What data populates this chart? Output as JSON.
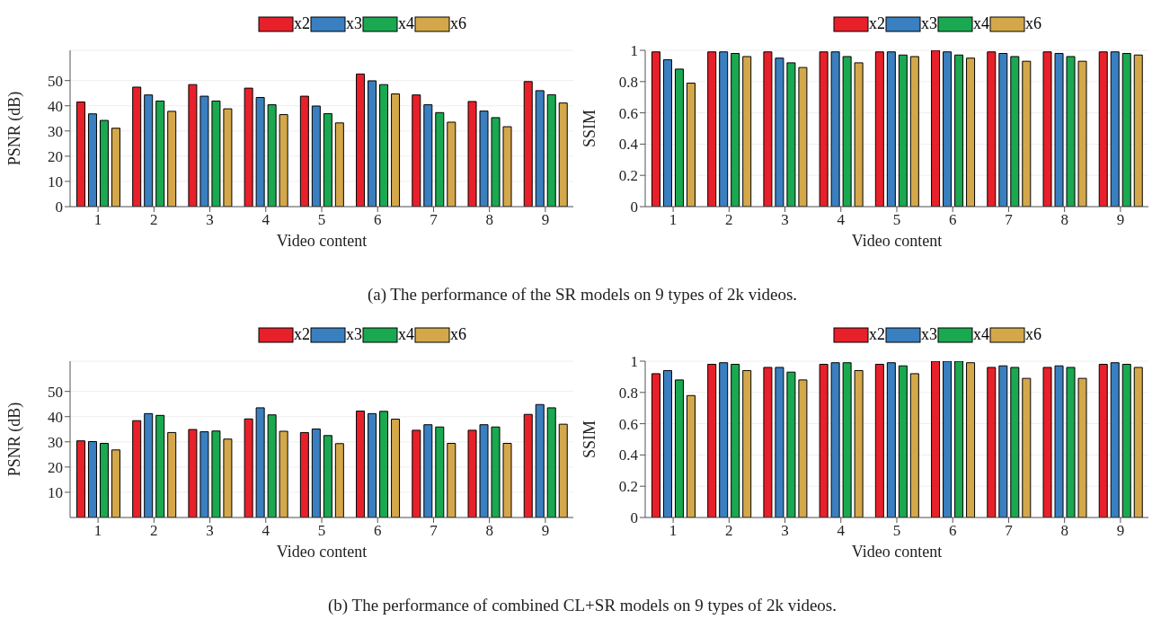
{
  "chart_data": [
    {
      "type": "bar",
      "xlabel": "Video content",
      "ylabel": "PSNR (dB)",
      "categories": [
        "1",
        "2",
        "3",
        "4",
        "5",
        "6",
        "7",
        "8",
        "9"
      ],
      "ylim": [
        0,
        62
      ],
      "yticks": [
        0,
        10,
        20,
        30,
        40,
        50
      ],
      "grid": "y",
      "legend": "top",
      "annotations": [
        "(a) The performance of the SR models on 9 types of 2k videos."
      ],
      "series": [
        {
          "name": "x2",
          "color": "#e8202a",
          "values": [
            41.5,
            47.4,
            48.4,
            47.0,
            43.8,
            52.6,
            44.3,
            41.7,
            49.6
          ]
        },
        {
          "name": "x3",
          "color": "#3a7fc0",
          "values": [
            36.8,
            44.3,
            43.8,
            43.3,
            39.9,
            49.9,
            40.4,
            37.9,
            46.0
          ]
        },
        {
          "name": "x4",
          "color": "#1aa850",
          "values": [
            34.2,
            41.9,
            41.9,
            40.4,
            36.9,
            48.4,
            37.3,
            35.3,
            44.4
          ]
        },
        {
          "name": "x6",
          "color": "#d4a84a",
          "values": [
            31.1,
            37.8,
            38.8,
            36.5,
            33.2,
            44.7,
            33.5,
            31.7,
            41.1
          ]
        }
      ]
    },
    {
      "type": "bar",
      "xlabel": "Video content",
      "ylabel": "SSIM",
      "categories": [
        "1",
        "2",
        "3",
        "4",
        "5",
        "6",
        "7",
        "8",
        "9"
      ],
      "ylim": [
        0,
        1
      ],
      "yticks": [
        0,
        0.2,
        0.4,
        0.6,
        0.8,
        1
      ],
      "grid": "y",
      "legend": "top",
      "series": [
        {
          "name": "x2",
          "color": "#e8202a",
          "values": [
            0.99,
            0.99,
            0.99,
            0.99,
            0.99,
            1.0,
            0.99,
            0.99,
            0.99
          ]
        },
        {
          "name": "x3",
          "color": "#3a7fc0",
          "values": [
            0.94,
            0.99,
            0.95,
            0.99,
            0.99,
            0.99,
            0.98,
            0.98,
            0.99
          ]
        },
        {
          "name": "x4",
          "color": "#1aa850",
          "values": [
            0.88,
            0.98,
            0.92,
            0.96,
            0.97,
            0.97,
            0.96,
            0.96,
            0.98
          ]
        },
        {
          "name": "x6",
          "color": "#d4a84a",
          "values": [
            0.79,
            0.96,
            0.89,
            0.92,
            0.96,
            0.95,
            0.93,
            0.93,
            0.97
          ]
        }
      ]
    },
    {
      "type": "bar",
      "xlabel": "Video content",
      "ylabel": "PSNR (dB)",
      "categories": [
        "1",
        "2",
        "3",
        "4",
        "5",
        "6",
        "7",
        "8",
        "9"
      ],
      "ylim": [
        0,
        62
      ],
      "yticks": [
        10,
        20,
        30,
        40,
        50
      ],
      "grid": "y",
      "legend": "top",
      "annotations": [
        "(b) The performance of combined CL+SR models on 9 types of 2k videos."
      ],
      "series": [
        {
          "name": "x2",
          "color": "#e8202a",
          "values": [
            30.4,
            38.4,
            34.9,
            39.1,
            33.7,
            42.2,
            34.6,
            34.6,
            40.9
          ]
        },
        {
          "name": "x3",
          "color": "#3a7fc0",
          "values": [
            30.1,
            41.2,
            34.0,
            43.5,
            35.1,
            41.2,
            36.8,
            36.8,
            44.8
          ]
        },
        {
          "name": "x4",
          "color": "#1aa850",
          "values": [
            29.4,
            40.5,
            34.3,
            40.7,
            32.5,
            42.1,
            35.9,
            35.9,
            43.5
          ]
        },
        {
          "name": "x6",
          "color": "#d4a84a",
          "values": [
            26.8,
            33.7,
            31.1,
            34.2,
            29.3,
            39.0,
            29.4,
            29.4,
            37.0
          ]
        }
      ]
    },
    {
      "type": "bar",
      "xlabel": "Video content",
      "ylabel": "SSIM",
      "categories": [
        "1",
        "2",
        "3",
        "4",
        "5",
        "6",
        "7",
        "8",
        "9"
      ],
      "ylim": [
        0,
        1
      ],
      "yticks": [
        0,
        0.2,
        0.4,
        0.6,
        0.8,
        1
      ],
      "grid": "y",
      "legend": "top",
      "series": [
        {
          "name": "x2",
          "color": "#e8202a",
          "values": [
            0.92,
            0.98,
            0.96,
            0.98,
            0.98,
            1.0,
            0.96,
            0.96,
            0.98
          ]
        },
        {
          "name": "x3",
          "color": "#3a7fc0",
          "values": [
            0.94,
            0.99,
            0.96,
            0.99,
            0.99,
            1.0,
            0.97,
            0.97,
            0.99
          ]
        },
        {
          "name": "x4",
          "color": "#1aa850",
          "values": [
            0.88,
            0.98,
            0.93,
            0.99,
            0.97,
            1.0,
            0.96,
            0.96,
            0.98
          ]
        },
        {
          "name": "x6",
          "color": "#d4a84a",
          "values": [
            0.78,
            0.94,
            0.88,
            0.94,
            0.92,
            0.99,
            0.89,
            0.89,
            0.96
          ]
        }
      ]
    }
  ]
}
